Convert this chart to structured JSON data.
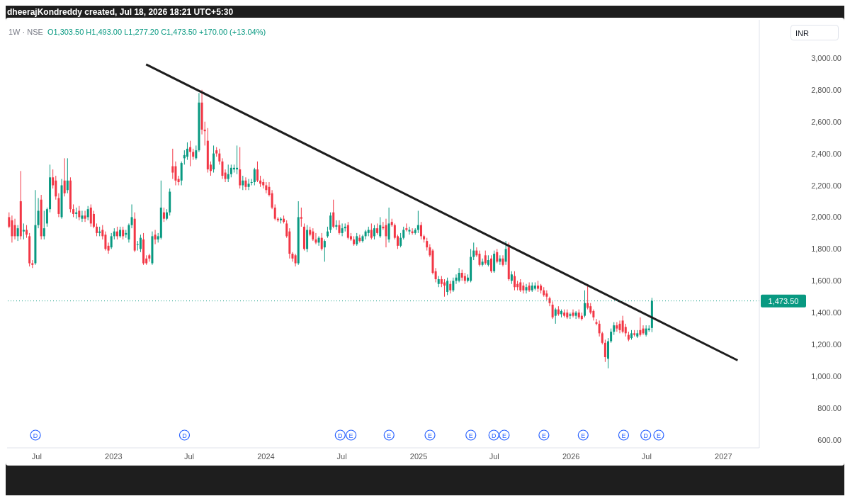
{
  "chart_data": {
    "type": "candlestick",
    "title": "1W · NSE",
    "annotations": [
      "dheerajKondreddy created, Jul 18, 2026 18:21 UTC+5:30",
      "O1,303.50 H1,493.00 L1,277.20 C1,473.50 +170.00 (+13.04%)",
      "INR",
      {
        "text": "D",
        "x": "2022-06-28"
      },
      {
        "text": "D",
        "x": "2023-06-20"
      },
      {
        "text": "D",
        "x": "2024-06-27"
      },
      {
        "text": "E",
        "x": "2024-07-23"
      },
      {
        "text": "E",
        "x": "2024-10-22"
      },
      {
        "text": "E",
        "x": "2025-01-28"
      },
      {
        "text": "E",
        "x": "2025-05-06"
      },
      {
        "text": "D",
        "x": "2025-06-30"
      },
      {
        "text": "E",
        "x": "2025-07-25"
      },
      {
        "text": "E",
        "x": "2025-10-28"
      },
      {
        "text": "E",
        "x": "2026-01-30"
      },
      {
        "text": "E",
        "x": "2026-05-07"
      },
      {
        "text": "D",
        "x": "2026-06-29"
      },
      {
        "text": "E",
        "x": "2026-07-30"
      }
    ],
    "x": [
      "2022-04-25",
      "2022-05-02",
      "2022-05-09",
      "2022-05-16",
      "2022-05-23",
      "2022-05-30",
      "2022-06-06",
      "2022-06-13",
      "2022-06-20",
      "2022-06-27",
      "2022-07-04",
      "2022-07-11",
      "2022-07-18",
      "2022-07-25",
      "2022-08-01",
      "2022-08-08",
      "2022-08-15",
      "2022-08-22",
      "2022-08-29",
      "2022-09-05",
      "2022-09-12",
      "2022-09-19",
      "2022-09-26",
      "2022-10-03",
      "2022-10-10",
      "2022-10-17",
      "2022-10-24",
      "2022-10-31",
      "2022-11-07",
      "2022-11-14",
      "2022-11-21",
      "2022-11-28",
      "2022-12-05",
      "2022-12-12",
      "2022-12-19",
      "2022-12-26",
      "2023-01-02",
      "2023-01-09",
      "2023-01-16",
      "2023-01-23",
      "2023-01-30",
      "2023-02-06",
      "2023-02-13",
      "2023-02-20",
      "2023-02-27",
      "2023-03-06",
      "2023-03-13",
      "2023-03-20",
      "2023-03-27",
      "2023-04-03",
      "2023-04-10",
      "2023-04-17",
      "2023-04-24",
      "2023-05-01",
      "2023-05-08",
      "2023-05-15",
      "2023-05-22",
      "2023-05-29",
      "2023-06-05",
      "2023-06-12",
      "2023-06-19",
      "2023-06-26",
      "2023-07-03",
      "2023-07-10",
      "2023-07-17",
      "2023-07-24",
      "2023-07-31",
      "2023-08-07",
      "2023-08-14",
      "2023-08-21",
      "2023-08-28",
      "2023-09-04",
      "2023-09-11",
      "2023-09-18",
      "2023-09-25",
      "2023-10-02",
      "2023-10-09",
      "2023-10-16",
      "2023-10-23",
      "2023-10-30",
      "2023-11-06",
      "2023-11-13",
      "2023-11-20",
      "2023-11-27",
      "2023-12-04",
      "2023-12-11",
      "2023-12-18",
      "2023-12-25",
      "2024-01-01",
      "2024-01-08",
      "2024-01-15",
      "2024-01-22",
      "2024-01-29",
      "2024-02-05",
      "2024-02-12",
      "2024-02-19",
      "2024-02-26",
      "2024-03-04",
      "2024-03-11",
      "2024-03-18",
      "2024-03-25",
      "2024-04-01",
      "2024-04-08",
      "2024-04-15",
      "2024-04-22",
      "2024-04-29",
      "2024-05-06",
      "2024-05-13",
      "2024-05-20",
      "2024-05-27",
      "2024-06-03",
      "2024-06-10",
      "2024-06-17",
      "2024-06-24",
      "2024-07-01",
      "2024-07-08",
      "2024-07-15",
      "2024-07-22",
      "2024-07-29",
      "2024-08-05",
      "2024-08-12",
      "2024-08-19",
      "2024-08-26",
      "2024-09-02",
      "2024-09-09",
      "2024-09-16",
      "2024-09-23",
      "2024-09-30",
      "2024-10-07",
      "2024-10-14",
      "2024-10-21",
      "2024-10-28",
      "2024-11-04",
      "2024-11-11",
      "2024-11-18",
      "2024-11-25",
      "2024-12-02",
      "2024-12-09",
      "2024-12-16",
      "2024-12-23",
      "2024-12-30",
      "2025-01-06",
      "2025-01-13",
      "2025-01-20",
      "2025-01-27",
      "2025-02-03",
      "2025-02-10",
      "2025-02-17",
      "2025-02-24",
      "2025-03-03",
      "2025-03-10",
      "2025-03-17",
      "2025-03-24",
      "2025-03-31",
      "2025-04-07",
      "2025-04-14",
      "2025-04-21",
      "2025-04-28",
      "2025-05-05",
      "2025-05-12",
      "2025-05-19",
      "2025-05-26",
      "2025-06-02",
      "2025-06-09",
      "2025-06-16",
      "2025-06-23",
      "2025-06-30",
      "2025-07-07",
      "2025-07-14",
      "2025-07-21",
      "2025-07-28",
      "2025-08-04",
      "2025-08-11",
      "2025-08-18",
      "2025-08-25",
      "2025-09-01",
      "2025-09-08",
      "2025-09-15",
      "2025-09-22",
      "2025-09-29",
      "2025-10-06",
      "2025-10-13",
      "2025-10-20",
      "2025-10-27",
      "2025-11-03",
      "2025-11-10",
      "2025-11-17",
      "2025-11-24",
      "2025-12-01",
      "2025-12-08",
      "2025-12-15",
      "2025-12-22",
      "2025-12-29",
      "2026-01-05",
      "2026-01-12",
      "2026-01-19",
      "2026-01-26",
      "2026-02-02",
      "2026-02-09",
      "2026-02-16",
      "2026-02-23",
      "2026-03-02",
      "2026-03-09",
      "2026-03-16",
      "2026-03-23",
      "2026-03-30",
      "2026-04-06",
      "2026-04-13",
      "2026-04-20",
      "2026-04-27",
      "2026-05-04",
      "2026-05-11",
      "2026-05-18",
      "2026-05-25",
      "2026-06-01",
      "2026-06-08",
      "2026-06-15",
      "2026-06-22",
      "2026-06-29",
      "2026-07-06",
      "2026-07-13"
    ],
    "ohlc": [
      [
        2000,
        2030,
        1930,
        1940
      ],
      [
        1980,
        2010,
        1840,
        1880
      ],
      [
        1950,
        1990,
        1860,
        1880
      ],
      [
        1880,
        1950,
        1850,
        1930
      ],
      [
        2100,
        2290,
        1860,
        1880
      ],
      [
        1910,
        1960,
        1860,
        1920
      ],
      [
        1920,
        1950,
        1870,
        1890
      ],
      [
        1880,
        1900,
        1690,
        1710
      ],
      [
        1710,
        1730,
        1680,
        1700
      ],
      [
        1710,
        2170,
        1700,
        1950
      ],
      [
        1950,
        2120,
        1930,
        2040
      ],
      [
        2110,
        2140,
        1860,
        1880
      ],
      [
        1880,
        2040,
        1860,
        1930
      ],
      [
        1960,
        2060,
        1940,
        2050
      ],
      [
        2050,
        2330,
        2030,
        2250
      ],
      [
        2250,
        2300,
        2180,
        2200
      ],
      [
        2230,
        2260,
        2110,
        2130
      ],
      [
        2120,
        2150,
        2000,
        2020
      ],
      [
        2000,
        2240,
        1990,
        2200
      ],
      [
        2230,
        2370,
        2130,
        2150
      ],
      [
        2170,
        2370,
        2150,
        2230
      ],
      [
        2230,
        2250,
        2030,
        2050
      ],
      [
        2050,
        2080,
        2000,
        2020
      ],
      [
        2020,
        2060,
        1990,
        2030
      ],
      [
        2040,
        2070,
        1980,
        2000
      ],
      [
        1990,
        2040,
        1970,
        2010
      ],
      [
        2010,
        2040,
        1970,
        1990
      ],
      [
        2000,
        2070,
        1980,
        2050
      ],
      [
        2060,
        2080,
        1940,
        1960
      ],
      [
        2020,
        2040,
        1930,
        1940
      ],
      [
        1940,
        1960,
        1880,
        1900
      ],
      [
        1900,
        1940,
        1880,
        1910
      ],
      [
        1920,
        1950,
        1860,
        1880
      ],
      [
        1890,
        1910,
        1790,
        1800
      ],
      [
        1820,
        1840,
        1770,
        1790
      ],
      [
        1810,
        1900,
        1800,
        1880
      ],
      [
        1880,
        1930,
        1860,
        1910
      ],
      [
        1910,
        1940,
        1860,
        1880
      ],
      [
        1880,
        1940,
        1870,
        1920
      ],
      [
        1920,
        1940,
        1860,
        1880
      ],
      [
        1890,
        1920,
        1870,
        1900
      ],
      [
        1860,
        1960,
        1840,
        1950
      ],
      [
        1950,
        2080,
        1930,
        2000
      ],
      [
        1990,
        2030,
        1780,
        1790
      ],
      [
        1830,
        1850,
        1790,
        1830
      ],
      [
        1800,
        1890,
        1780,
        1870
      ],
      [
        1860,
        1900,
        1700,
        1710
      ],
      [
        1740,
        1760,
        1700,
        1710
      ],
      [
        1760,
        1770,
        1720,
        1740
      ],
      [
        1710,
        1910,
        1700,
        1880
      ],
      [
        1890,
        1920,
        1830,
        1860
      ],
      [
        1860,
        1900,
        1840,
        1880
      ],
      [
        1870,
        2230,
        1860,
        2060
      ],
      [
        2030,
        2060,
        1970,
        1990
      ],
      [
        1990,
        2050,
        1980,
        2030
      ],
      [
        2030,
        2180,
        2010,
        2160
      ],
      [
        2320,
        2430,
        2240,
        2280
      ],
      [
        2320,
        2350,
        2200,
        2230
      ],
      [
        2240,
        2260,
        2200,
        2220
      ],
      [
        2230,
        2350,
        2200,
        2340
      ],
      [
        2370,
        2420,
        2330,
        2390
      ],
      [
        2380,
        2470,
        2360,
        2430
      ],
      [
        2440,
        2480,
        2320,
        2410
      ],
      [
        2410,
        2430,
        2360,
        2380
      ],
      [
        2370,
        2450,
        2360,
        2420
      ],
      [
        2420,
        2780,
        2410,
        2720
      ],
      [
        2720,
        2800,
        2520,
        2550
      ],
      [
        2550,
        2600,
        2450,
        2540
      ],
      [
        2480,
        2560,
        2280,
        2300
      ],
      [
        2330,
        2350,
        2260,
        2290
      ],
      [
        2300,
        2450,
        2280,
        2400
      ],
      [
        2420,
        2440,
        2380,
        2400
      ],
      [
        2400,
        2430,
        2330,
        2350
      ],
      [
        2350,
        2370,
        2240,
        2260
      ],
      [
        2280,
        2300,
        2220,
        2240
      ],
      [
        2240,
        2330,
        2220,
        2270
      ],
      [
        2270,
        2330,
        2250,
        2310
      ],
      [
        2300,
        2330,
        2280,
        2310
      ],
      [
        2300,
        2450,
        2270,
        2310
      ],
      [
        2300,
        2440,
        2180,
        2200
      ],
      [
        2200,
        2260,
        2170,
        2230
      ],
      [
        2230,
        2250,
        2170,
        2190
      ],
      [
        2190,
        2240,
        2170,
        2210
      ],
      [
        2220,
        2240,
        2200,
        2220
      ],
      [
        2220,
        2310,
        2200,
        2300
      ],
      [
        2300,
        2350,
        2220,
        2230
      ],
      [
        2230,
        2260,
        2190,
        2210
      ],
      [
        2220,
        2240,
        2180,
        2200
      ],
      [
        2200,
        2220,
        2150,
        2170
      ],
      [
        2190,
        2220,
        2130,
        2140
      ],
      [
        2150,
        2170,
        2050,
        2060
      ],
      [
        2060,
        2080,
        1980,
        1990
      ],
      [
        1990,
        2000,
        1970,
        1980
      ],
      [
        1980,
        2000,
        1960,
        1990
      ],
      [
        1990,
        2010,
        1960,
        1970
      ],
      [
        1960,
        1980,
        1870,
        1880
      ],
      [
        1910,
        1930,
        1740,
        1770
      ],
      [
        1770,
        1780,
        1720,
        1740
      ],
      [
        1760,
        1770,
        1690,
        1710
      ],
      [
        1710,
        2100,
        1700,
        2000
      ],
      [
        2000,
        2060,
        1940,
        1990
      ],
      [
        1940,
        1960,
        1790,
        1800
      ],
      [
        1800,
        1950,
        1780,
        1920
      ],
      [
        1920,
        1940,
        1880,
        1890
      ],
      [
        1910,
        1930,
        1850,
        1860
      ],
      [
        1860,
        1900,
        1830,
        1840
      ],
      [
        1840,
        1880,
        1820,
        1870
      ],
      [
        1870,
        1900,
        1790,
        1800
      ],
      [
        1810,
        1860,
        1720,
        1850
      ],
      [
        1880,
        1940,
        1870,
        1910
      ],
      [
        1920,
        2030,
        1900,
        2010
      ],
      [
        2030,
        2110,
        1930,
        1940
      ],
      [
        1940,
        1980,
        1920,
        1950
      ],
      [
        1950,
        1980,
        1890,
        1900
      ],
      [
        1900,
        1960,
        1880,
        1930
      ],
      [
        1930,
        1960,
        1910,
        1940
      ],
      [
        1950,
        1970,
        1860,
        1870
      ],
      [
        1880,
        1900,
        1850,
        1860
      ],
      [
        1860,
        1880,
        1820,
        1830
      ],
      [
        1830,
        1900,
        1820,
        1880
      ],
      [
        1870,
        1890,
        1840,
        1850
      ],
      [
        1850,
        1890,
        1840,
        1880
      ],
      [
        1880,
        1920,
        1860,
        1910
      ],
      [
        1900,
        1940,
        1880,
        1920
      ],
      [
        1920,
        1960,
        1860,
        1870
      ],
      [
        1880,
        1950,
        1860,
        1930
      ],
      [
        1930,
        1960,
        1890,
        1900
      ],
      [
        1880,
        2000,
        1870,
        1950
      ],
      [
        1940,
        1970,
        1920,
        1930
      ],
      [
        1950,
        1990,
        1810,
        1880
      ],
      [
        1860,
        2060,
        1840,
        1960
      ],
      [
        1970,
        1990,
        1940,
        1950
      ],
      [
        1950,
        1960,
        1860,
        1870
      ],
      [
        1880,
        1890,
        1800,
        1820
      ],
      [
        1820,
        1900,
        1810,
        1870
      ],
      [
        1870,
        1940,
        1860,
        1920
      ],
      [
        1930,
        1960,
        1910,
        1920
      ],
      [
        1910,
        1940,
        1890,
        1920
      ],
      [
        1910,
        1930,
        1890,
        1900
      ],
      [
        1900,
        1930,
        1890,
        1920
      ],
      [
        1920,
        2040,
        1900,
        1950
      ],
      [
        1950,
        1970,
        1860,
        1880
      ],
      [
        1880,
        1890,
        1840,
        1860
      ],
      [
        1850,
        1870,
        1790,
        1810
      ],
      [
        1810,
        1830,
        1750,
        1760
      ],
      [
        1790,
        1800,
        1640,
        1650
      ],
      [
        1660,
        1680,
        1590,
        1610
      ],
      [
        1580,
        1630,
        1560,
        1610
      ],
      [
        1610,
        1630,
        1560,
        1580
      ],
      [
        1590,
        1610,
        1500,
        1570
      ],
      [
        1530,
        1620,
        1510,
        1600
      ],
      [
        1580,
        1600,
        1520,
        1540
      ],
      [
        1540,
        1620,
        1530,
        1600
      ],
      [
        1600,
        1640,
        1580,
        1620
      ],
      [
        1600,
        1680,
        1590,
        1650
      ],
      [
        1650,
        1670,
        1600,
        1620
      ],
      [
        1630,
        1650,
        1580,
        1600
      ],
      [
        1600,
        1640,
        1590,
        1620
      ],
      [
        1600,
        1800,
        1590,
        1750
      ],
      [
        1750,
        1840,
        1730,
        1790
      ],
      [
        1790,
        1810,
        1750,
        1760
      ],
      [
        1770,
        1790,
        1690,
        1700
      ],
      [
        1700,
        1740,
        1690,
        1720
      ],
      [
        1760,
        1790,
        1700,
        1710
      ],
      [
        1700,
        1760,
        1690,
        1730
      ],
      [
        1740,
        1760,
        1650,
        1660
      ],
      [
        1660,
        1790,
        1650,
        1770
      ],
      [
        1780,
        1800,
        1710,
        1720
      ],
      [
        1720,
        1760,
        1700,
        1740
      ],
      [
        1740,
        1760,
        1690,
        1700
      ],
      [
        1720,
        1850,
        1700,
        1800
      ],
      [
        1810,
        1840,
        1600,
        1610
      ],
      [
        1600,
        1660,
        1580,
        1640
      ],
      [
        1630,
        1660,
        1540,
        1560
      ],
      [
        1580,
        1600,
        1540,
        1560
      ],
      [
        1590,
        1610,
        1530,
        1540
      ],
      [
        1570,
        1590,
        1520,
        1540
      ],
      [
        1540,
        1580,
        1520,
        1560
      ],
      [
        1570,
        1590,
        1530,
        1540
      ],
      [
        1540,
        1590,
        1530,
        1570
      ],
      [
        1550,
        1590,
        1540,
        1570
      ],
      [
        1570,
        1600,
        1530,
        1550
      ],
      [
        1570,
        1580,
        1520,
        1540
      ],
      [
        1540,
        1560,
        1500,
        1510
      ],
      [
        1520,
        1540,
        1480,
        1500
      ],
      [
        1490,
        1500,
        1440,
        1460
      ],
      [
        1450,
        1470,
        1360,
        1370
      ],
      [
        1380,
        1430,
        1330,
        1420
      ],
      [
        1420,
        1440,
        1380,
        1390
      ],
      [
        1390,
        1420,
        1370,
        1410
      ],
      [
        1400,
        1420,
        1370,
        1380
      ],
      [
        1400,
        1420,
        1360,
        1370
      ],
      [
        1380,
        1400,
        1360,
        1390
      ],
      [
        1400,
        1420,
        1370,
        1380
      ],
      [
        1380,
        1410,
        1360,
        1400
      ],
      [
        1400,
        1420,
        1360,
        1370
      ],
      [
        1380,
        1400,
        1350,
        1360
      ],
      [
        1380,
        1540,
        1370,
        1460
      ],
      [
        1460,
        1570,
        1420,
        1430
      ],
      [
        1440,
        1460,
        1390,
        1400
      ],
      [
        1410,
        1420,
        1350,
        1370
      ],
      [
        1340,
        1360,
        1320,
        1330
      ],
      [
        1330,
        1350,
        1250,
        1270
      ],
      [
        1270,
        1280,
        1200,
        1210
      ],
      [
        1210,
        1230,
        1090,
        1120
      ],
      [
        1110,
        1240,
        1050,
        1220
      ],
      [
        1220,
        1300,
        1210,
        1280
      ],
      [
        1280,
        1340,
        1260,
        1320
      ],
      [
        1320,
        1340,
        1280,
        1300
      ],
      [
        1330,
        1350,
        1270,
        1290
      ],
      [
        1350,
        1380,
        1270,
        1280
      ],
      [
        1310,
        1330,
        1250,
        1270
      ],
      [
        1260,
        1280,
        1220,
        1230
      ],
      [
        1240,
        1290,
        1230,
        1270
      ],
      [
        1270,
        1290,
        1250,
        1260
      ],
      [
        1250,
        1290,
        1240,
        1270
      ],
      [
        1290,
        1370,
        1250,
        1260
      ],
      [
        1300,
        1320,
        1260,
        1270
      ],
      [
        1260,
        1320,
        1250,
        1300
      ],
      [
        1290,
        1320,
        1280,
        1300
      ],
      [
        1303.5,
        1493,
        1277.2,
        1473.5
      ]
    ],
    "series": [
      {
        "type": "line",
        "color": "#1e1e1e",
        "x": [
          "2023-03-20",
          "2027-02-04"
        ],
        "values": [
          2960,
          1100
        ]
      }
    ],
    "ref_lines": [
      {
        "axis": "y",
        "value": 1473.5,
        "label": "1,473.50",
        "color": "#089981",
        "line_style": "dotted"
      }
    ],
    "xlim": [
      "2022-04-21",
      "2027-03-28"
    ],
    "xticks": [
      {
        "value": "2022-07-01",
        "label": "Jul"
      },
      {
        "value": "2023-01-01",
        "label": "2023"
      },
      {
        "value": "2023-07-01",
        "label": "Jul"
      },
      {
        "value": "2024-01-01",
        "label": "2024"
      },
      {
        "value": "2024-07-01",
        "label": "Jul"
      },
      {
        "value": "2025-01-01",
        "label": "2025"
      },
      {
        "value": "2025-07-01",
        "label": "Jul"
      },
      {
        "value": "2026-01-01",
        "label": "2026"
      },
      {
        "value": "2026-07-01",
        "label": "Jul"
      },
      {
        "value": "2027-01-01",
        "label": "2027"
      }
    ],
    "ylim": [
      550,
      3240
    ],
    "yticks": [
      {
        "value": 600,
        "label": "600.00"
      },
      {
        "value": 800,
        "label": "800.00"
      },
      {
        "value": 1000,
        "label": "1,000.00"
      },
      {
        "value": 1200,
        "label": "1,200.00"
      },
      {
        "value": 1400,
        "label": "1,400.00"
      },
      {
        "value": 1600,
        "label": "1,600.00"
      },
      {
        "value": 1800,
        "label": "1,800.00"
      },
      {
        "value": 2000,
        "label": "2,000.00"
      },
      {
        "value": 2200,
        "label": "2,200.00"
      },
      {
        "value": 2400,
        "label": "2,400.00"
      },
      {
        "value": 2600,
        "label": "2,600.00"
      },
      {
        "value": 2800,
        "label": "2,800.00"
      },
      {
        "value": 3000,
        "label": "3,000.00"
      }
    ]
  }
}
